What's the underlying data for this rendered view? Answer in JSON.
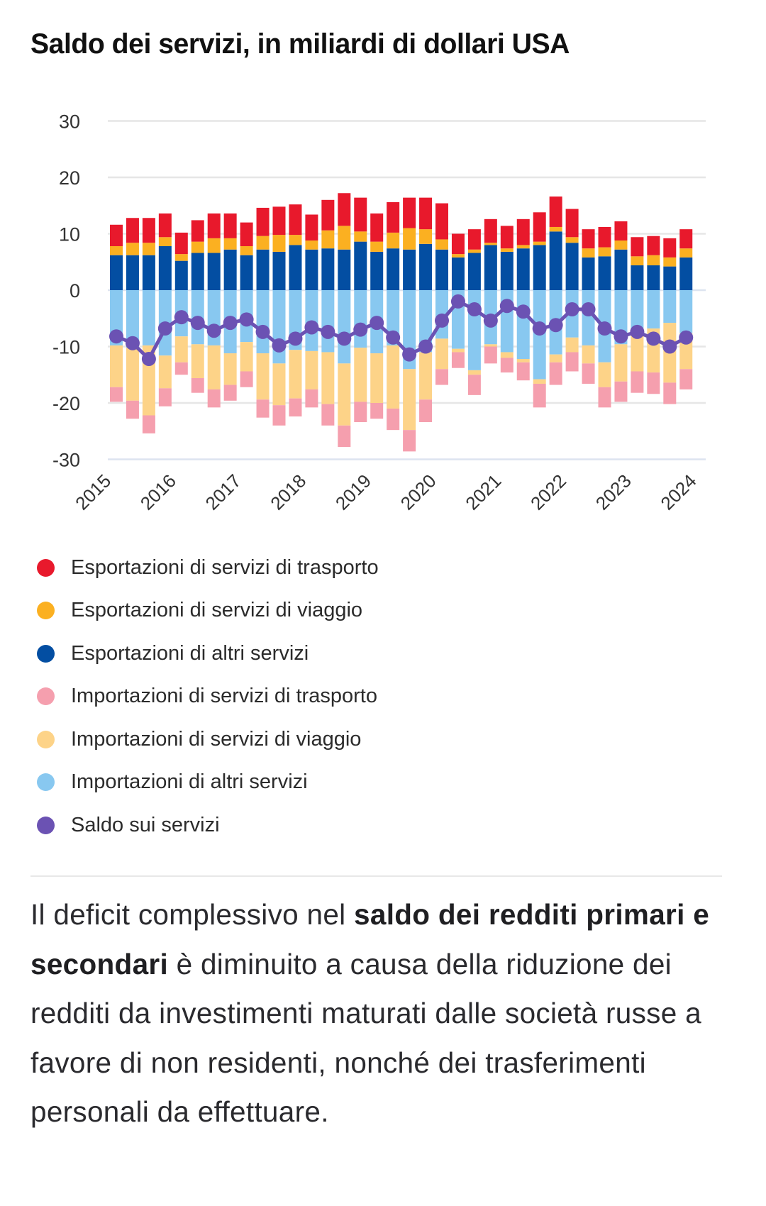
{
  "title": "Saldo dei servizi, in miliardi di dollari USA",
  "colors": {
    "exp_transport": "#e8192c",
    "exp_travel": "#fbb021",
    "exp_other": "#034ea2",
    "imp_transport": "#f59fae",
    "imp_travel": "#fdd388",
    "imp_other": "#88c8f0",
    "balance": "#6b52b3",
    "grid": "#e6e6e6",
    "zero_line": "#dde4f0"
  },
  "chart_data": {
    "type": "bar",
    "stacked": true,
    "title": "Saldo dei servizi, in miliardi di dollari USA",
    "xlabel": "",
    "ylabel": "",
    "ylim": [
      -30,
      30
    ],
    "yticks": [
      30,
      20,
      10,
      0,
      -10,
      -20,
      -30
    ],
    "grid": true,
    "legend_position": "bottom",
    "x_tick_labels": [
      "2015",
      "2016",
      "2017",
      "2018",
      "2019",
      "2020",
      "2021",
      "2022",
      "2023",
      "2024"
    ],
    "periods": [
      "2015Q1",
      "2015Q2",
      "2015Q3",
      "2015Q4",
      "2016Q1",
      "2016Q2",
      "2016Q3",
      "2016Q4",
      "2017Q1",
      "2017Q2",
      "2017Q3",
      "2017Q4",
      "2018Q1",
      "2018Q2",
      "2018Q3",
      "2018Q4",
      "2019Q1",
      "2019Q2",
      "2019Q3",
      "2019Q4",
      "2020Q1",
      "2020Q2",
      "2020Q3",
      "2020Q4",
      "2021Q1",
      "2021Q2",
      "2021Q3",
      "2021Q4",
      "2022Q1",
      "2022Q2",
      "2022Q3",
      "2022Q4",
      "2023Q1",
      "2023Q2",
      "2023Q3",
      "2023Q4"
    ],
    "series": [
      {
        "key": "exp_other",
        "name": "Esportazioni di altri servizi",
        "kind": "bar",
        "values": [
          6.2,
          6.2,
          6.2,
          7.8,
          5.2,
          6.6,
          6.6,
          7.2,
          6.2,
          7.2,
          6.8,
          8.0,
          7.2,
          7.4,
          7.2,
          8.6,
          6.8,
          7.4,
          7.2,
          8.2,
          7.2,
          5.8,
          6.6,
          8.0,
          6.8,
          7.4,
          8.0,
          10.4,
          8.4,
          5.8,
          6.0,
          7.2,
          4.4,
          4.4,
          4.2,
          5.8
        ]
      },
      {
        "key": "exp_travel",
        "name": "Esportazioni di servizi di viaggio",
        "kind": "bar",
        "values": [
          1.6,
          2.2,
          2.2,
          1.6,
          1.2,
          2.0,
          2.6,
          2.0,
          1.6,
          2.4,
          3.0,
          1.8,
          1.6,
          3.2,
          4.2,
          1.8,
          1.8,
          2.8,
          3.8,
          2.6,
          1.8,
          0.6,
          0.6,
          0.4,
          0.6,
          0.6,
          0.6,
          0.8,
          1.0,
          1.6,
          1.6,
          1.6,
          1.6,
          1.8,
          1.6,
          1.6
        ]
      },
      {
        "key": "exp_transport",
        "name": "Esportazioni di servizi di trasporto",
        "kind": "bar",
        "values": [
          3.8,
          4.4,
          4.4,
          4.2,
          3.8,
          3.8,
          4.4,
          4.4,
          4.2,
          5.0,
          5.0,
          5.4,
          4.6,
          5.4,
          5.8,
          6.0,
          5.0,
          5.4,
          5.4,
          5.6,
          6.4,
          3.6,
          3.6,
          4.2,
          4.0,
          4.6,
          5.2,
          5.4,
          5.0,
          3.4,
          3.6,
          3.4,
          3.4,
          3.4,
          3.4,
          3.4
        ]
      },
      {
        "key": "imp_other",
        "name": "Importazioni di altri servizi",
        "kind": "bar",
        "values": [
          -9.8,
          -10.2,
          -9.8,
          -11.6,
          -8.2,
          -9.6,
          -9.8,
          -11.2,
          -9.2,
          -11.2,
          -13.0,
          -10.6,
          -10.8,
          -11.0,
          -13.0,
          -10.2,
          -11.2,
          -9.8,
          -14.0,
          -11.0,
          -8.6,
          -10.4,
          -14.2,
          -9.6,
          -11.0,
          -12.2,
          -15.8,
          -11.4,
          -8.4,
          -9.8,
          -12.8,
          -9.6,
          -6.8,
          -6.8,
          -5.8,
          -7.6
        ]
      },
      {
        "key": "imp_travel",
        "name": "Importazioni di servizi di viaggio",
        "kind": "bar",
        "values": [
          -7.4,
          -9.4,
          -12.4,
          -5.8,
          -4.6,
          -6.0,
          -7.8,
          -5.6,
          -5.2,
          -8.2,
          -7.4,
          -8.6,
          -6.8,
          -9.2,
          -11.0,
          -9.6,
          -8.8,
          -11.2,
          -10.8,
          -8.4,
          -5.4,
          -0.6,
          -0.8,
          -0.4,
          -1.0,
          -0.6,
          -0.8,
          -1.4,
          -2.6,
          -3.2,
          -4.4,
          -6.6,
          -7.6,
          -7.8,
          -10.6,
          -6.4
        ]
      },
      {
        "key": "imp_transport",
        "name": "Importazioni di servizi di trasporto",
        "kind": "bar",
        "values": [
          -2.6,
          -3.2,
          -3.2,
          -3.2,
          -2.2,
          -2.6,
          -3.2,
          -2.8,
          -2.8,
          -3.2,
          -3.6,
          -3.2,
          -3.2,
          -3.8,
          -3.8,
          -3.6,
          -2.8,
          -3.8,
          -3.8,
          -4.0,
          -2.8,
          -2.8,
          -3.6,
          -3.0,
          -2.6,
          -3.2,
          -4.2,
          -4.0,
          -3.4,
          -3.6,
          -3.6,
          -3.6,
          -3.8,
          -3.8,
          -3.8,
          -3.6
        ]
      },
      {
        "key": "balance",
        "name": "Saldo sui servizi",
        "kind": "line",
        "values": [
          -8.2,
          -9.4,
          -12.2,
          -6.8,
          -4.8,
          -5.8,
          -7.2,
          -5.8,
          -5.2,
          -7.4,
          -9.8,
          -8.6,
          -6.6,
          -7.4,
          -8.6,
          -7.0,
          -5.8,
          -8.4,
          -11.4,
          -10.0,
          -5.4,
          -2.0,
          -3.4,
          -5.4,
          -2.8,
          -3.8,
          -6.8,
          -6.2,
          -3.4,
          -3.4,
          -6.8,
          -8.2,
          -7.4,
          -8.6,
          -10.0,
          -8.4
        ]
      }
    ]
  },
  "legend": [
    {
      "label": "Esportazioni di servizi di trasporto",
      "color": "#e8192c"
    },
    {
      "label": "Esportazioni di servizi di viaggio",
      "color": "#fbb021"
    },
    {
      "label": "Esportazioni di altri servizi",
      "color": "#034ea2"
    },
    {
      "label": "Importazioni di servizi di trasporto",
      "color": "#f59fae"
    },
    {
      "label": "Importazioni di servizi di viaggio",
      "color": "#fdd388"
    },
    {
      "label": "Importazioni di altri servizi",
      "color": "#88c8f0"
    },
    {
      "label": "Saldo sui servizi",
      "color": "#6b52b3"
    }
  ],
  "body": {
    "part1": "Il deficit complessivo nel ",
    "bold": "saldo dei redditi primari e secondari",
    "part2": " è diminuito a causa della riduzione dei redditi da investimenti maturati dalle società russe a favore di non residenti, nonché dei trasferimenti personali da effettuare."
  }
}
